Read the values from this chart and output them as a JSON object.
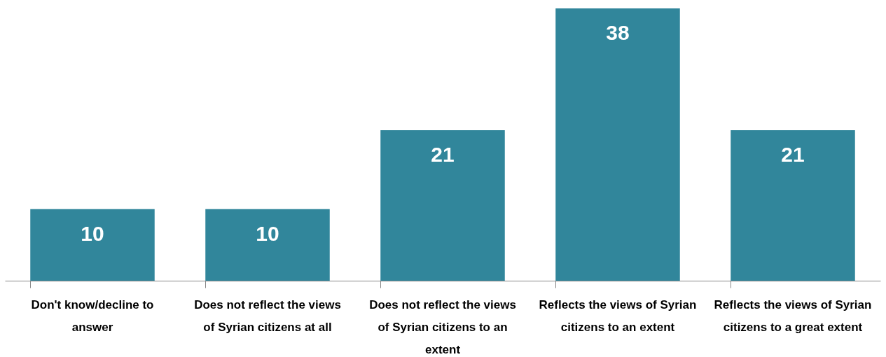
{
  "chart_data": {
    "type": "bar",
    "categories": [
      "Don't know/decline to answer",
      "Does not reflect the views of Syrian citizens at all",
      "Does not reflect the views of Syrian citizens to an extent",
      "Reflects the views of Syrian citizens to an extent",
      "Reflects the views of Syrian citizens to a great extent"
    ],
    "values": [
      10,
      10,
      21,
      38,
      21
    ],
    "color": "#31869b",
    "data_labels": true,
    "relative": false,
    "grid": false
  }
}
